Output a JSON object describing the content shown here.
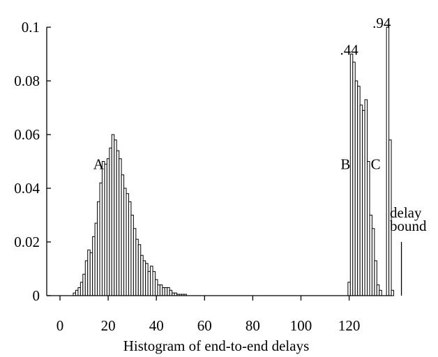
{
  "chart_data": {
    "type": "bar",
    "title": "",
    "xlabel": "Histogram of end-to-end delays",
    "ylabel": "",
    "xlim": [
      0,
      142
    ],
    "ylim": [
      0,
      0.1
    ],
    "grid": false,
    "bin_width": 1,
    "x_ticks": [
      "0",
      "20",
      "40",
      "60",
      "80",
      "100",
      "120"
    ],
    "y_ticks": [
      "0",
      "0.02",
      "0.04",
      "0.06",
      "0.08",
      "0.1"
    ],
    "bins": [
      {
        "x": 6,
        "y": 0.001
      },
      {
        "x": 7,
        "y": 0.002
      },
      {
        "x": 8,
        "y": 0.003
      },
      {
        "x": 9,
        "y": 0.005
      },
      {
        "x": 10,
        "y": 0.008
      },
      {
        "x": 11,
        "y": 0.013
      },
      {
        "x": 12,
        "y": 0.017
      },
      {
        "x": 13,
        "y": 0.016
      },
      {
        "x": 14,
        "y": 0.022
      },
      {
        "x": 15,
        "y": 0.027
      },
      {
        "x": 16,
        "y": 0.035
      },
      {
        "x": 17,
        "y": 0.042
      },
      {
        "x": 18,
        "y": 0.05
      },
      {
        "x": 19,
        "y": 0.049
      },
      {
        "x": 20,
        "y": 0.051
      },
      {
        "x": 21,
        "y": 0.055
      },
      {
        "x": 22,
        "y": 0.06
      },
      {
        "x": 23,
        "y": 0.058
      },
      {
        "x": 24,
        "y": 0.054
      },
      {
        "x": 25,
        "y": 0.051
      },
      {
        "x": 26,
        "y": 0.045
      },
      {
        "x": 27,
        "y": 0.04
      },
      {
        "x": 28,
        "y": 0.038
      },
      {
        "x": 29,
        "y": 0.035
      },
      {
        "x": 30,
        "y": 0.03
      },
      {
        "x": 31,
        "y": 0.025
      },
      {
        "x": 32,
        "y": 0.021
      },
      {
        "x": 33,
        "y": 0.019
      },
      {
        "x": 34,
        "y": 0.015
      },
      {
        "x": 35,
        "y": 0.013
      },
      {
        "x": 36,
        "y": 0.012
      },
      {
        "x": 37,
        "y": 0.009
      },
      {
        "x": 38,
        "y": 0.011
      },
      {
        "x": 39,
        "y": 0.009
      },
      {
        "x": 40,
        "y": 0.006
      },
      {
        "x": 41,
        "y": 0.004
      },
      {
        "x": 42,
        "y": 0.004
      },
      {
        "x": 43,
        "y": 0.003
      },
      {
        "x": 44,
        "y": 0.003
      },
      {
        "x": 45,
        "y": 0.003
      },
      {
        "x": 46,
        "y": 0.002
      },
      {
        "x": 47,
        "y": 0.001
      },
      {
        "x": 48,
        "y": 0.001
      },
      {
        "x": 49,
        "y": 0.0005
      },
      {
        "x": 50,
        "y": 0.0005
      },
      {
        "x": 51,
        "y": 0.0005
      },
      {
        "x": 52,
        "y": 0.0005
      },
      {
        "x": 120,
        "y": 0.005
      },
      {
        "x": 121,
        "y": 0.09
      },
      {
        "x": 122,
        "y": 0.087
      },
      {
        "x": 123,
        "y": 0.08
      },
      {
        "x": 124,
        "y": 0.078
      },
      {
        "x": 125,
        "y": 0.071
      },
      {
        "x": 126,
        "y": 0.069
      },
      {
        "x": 127,
        "y": 0.073
      },
      {
        "x": 128,
        "y": 0.05
      },
      {
        "x": 129,
        "y": 0.03
      },
      {
        "x": 130,
        "y": 0.025
      },
      {
        "x": 131,
        "y": 0.013
      },
      {
        "x": 132,
        "y": 0.004
      },
      {
        "x": 133,
        "y": 0.002
      },
      {
        "x": 136,
        "y": 0.1
      },
      {
        "x": 137,
        "y": 0.058
      },
      {
        "x": 138,
        "y": 0.002
      }
    ],
    "annotations": [
      {
        "text": "A",
        "x": 16,
        "y": 0.049
      },
      {
        "text": "B",
        "x": 118.5,
        "y": 0.049
      },
      {
        "text": "C",
        "x": 131,
        "y": 0.049
      },
      {
        "text": ".44",
        "x": 120,
        "y": 0.0915
      },
      {
        "text": ".94",
        "x": 133.5,
        "y": 0.1015
      }
    ],
    "delay_bound": {
      "label_line1": "delay",
      "label_line2": "bound",
      "x": 141.7,
      "y": 0.02
    }
  }
}
